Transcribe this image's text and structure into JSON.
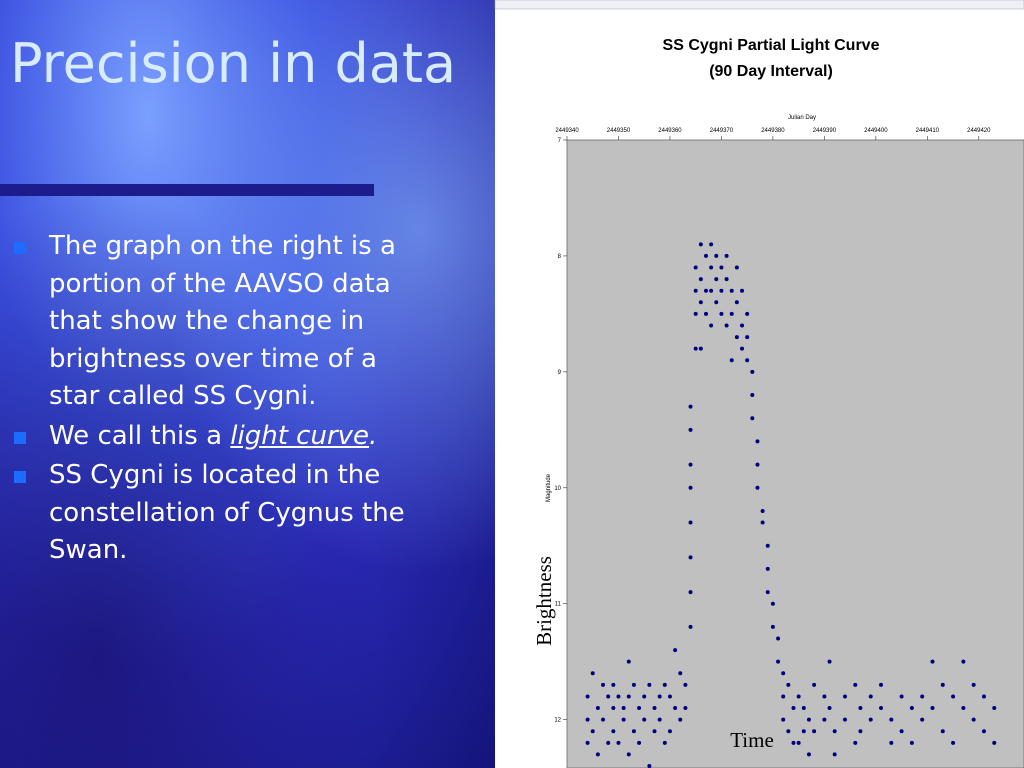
{
  "slide": {
    "title": "Precision in data",
    "bullets": [
      [
        "The graph on the right is a portion of the AAVSO data that show the change in brightness over time of a star called SS Cygni."
      ],
      [
        "We call this a ",
        "light curve",
        "."
      ],
      [
        "SS Cygni is located in the constellation of Cygnus the Swan."
      ]
    ]
  },
  "chart_data": {
    "type": "scatter",
    "title": "SS Cygni  Partial Light Curve",
    "subtitle": "(90 Day Interval)",
    "x_label": "Julian Day",
    "y_label": "Magnitude",
    "annotations": [
      "Brightness",
      "Time"
    ],
    "color": "#000080",
    "invert_y": true,
    "xlim": [
      2449340,
      2449428
    ],
    "xticks": [
      2449340,
      2449350,
      2449360,
      2449370,
      2449380,
      2449390,
      2449400,
      2449410,
      2449420
    ],
    "ylim": [
      7,
      12.4
    ],
    "yticks": [
      7,
      8,
      9,
      10,
      11,
      12
    ],
    "x": [
      2449344,
      2449344,
      2449344,
      2449345,
      2449345,
      2449346,
      2449346,
      2449347,
      2449347,
      2449348,
      2449348,
      2449349,
      2449349,
      2449349,
      2449350,
      2449350,
      2449351,
      2449351,
      2449352,
      2449352,
      2449352,
      2449353,
      2449353,
      2449354,
      2449354,
      2449355,
      2449355,
      2449356,
      2449356,
      2449357,
      2449357,
      2449358,
      2449358,
      2449359,
      2449359,
      2449360,
      2449360,
      2449361,
      2449361,
      2449362,
      2449362,
      2449363,
      2449363,
      2449364,
      2449364,
      2449364,
      2449364,
      2449364,
      2449364,
      2449364,
      2449364,
      2449365,
      2449365,
      2449365,
      2449365,
      2449366,
      2449366,
      2449366,
      2449366,
      2449367,
      2449367,
      2449367,
      2449368,
      2449368,
      2449368,
      2449368,
      2449369,
      2449369,
      2449369,
      2449370,
      2449370,
      2449370,
      2449371,
      2449371,
      2449371,
      2449372,
      2449372,
      2449372,
      2449373,
      2449373,
      2449373,
      2449374,
      2449374,
      2449374,
      2449375,
      2449375,
      2449375,
      2449376,
      2449376,
      2449376,
      2449377,
      2449377,
      2449377,
      2449378,
      2449378,
      2449379,
      2449379,
      2449379,
      2449380,
      2449380,
      2449381,
      2449381,
      2449382,
      2449382,
      2449382,
      2449383,
      2449383,
      2449384,
      2449384,
      2449385,
      2449385,
      2449386,
      2449386,
      2449387,
      2449387,
      2449388,
      2449388,
      2449390,
      2449390,
      2449391,
      2449391,
      2449392,
      2449392,
      2449394,
      2449394,
      2449396,
      2449396,
      2449397,
      2449397,
      2449399,
      2449399,
      2449401,
      2449401,
      2449403,
      2449403,
      2449405,
      2449405,
      2449407,
      2449407,
      2449409,
      2449409,
      2449411,
      2449411,
      2449413,
      2449413,
      2449415,
      2449415,
      2449417,
      2449417,
      2449419,
      2449419,
      2449421,
      2449421,
      2449423,
      2449423
    ],
    "values": [
      11.8,
      12.0,
      12.2,
      11.6,
      12.1,
      11.9,
      12.3,
      11.7,
      12.0,
      11.8,
      12.2,
      11.7,
      11.9,
      12.1,
      11.8,
      12.2,
      11.9,
      12.0,
      11.5,
      11.8,
      12.3,
      11.7,
      12.1,
      11.9,
      12.2,
      11.8,
      12.0,
      11.7,
      12.4,
      11.9,
      12.1,
      11.8,
      12.0,
      11.7,
      12.2,
      11.8,
      12.1,
      11.4,
      11.9,
      11.6,
      12.0,
      11.7,
      11.9,
      11.2,
      10.9,
      10.6,
      10.3,
      10.0,
      9.8,
      9.5,
      9.3,
      8.8,
      8.5,
      8.3,
      8.1,
      7.9,
      8.2,
      8.4,
      8.8,
      8.0,
      8.3,
      8.5,
      7.9,
      8.1,
      8.3,
      8.6,
      8.0,
      8.2,
      8.4,
      8.1,
      8.3,
      8.5,
      8.0,
      8.2,
      8.6,
      8.3,
      8.5,
      8.9,
      8.1,
      8.4,
      8.7,
      8.3,
      8.6,
      8.8,
      8.5,
      8.7,
      8.9,
      9.0,
      9.2,
      9.4,
      9.6,
      9.8,
      10.0,
      10.2,
      10.3,
      10.5,
      10.7,
      10.9,
      11.0,
      11.2,
      11.3,
      11.5,
      11.6,
      11.8,
      12.0,
      11.7,
      12.1,
      11.9,
      12.2,
      11.8,
      12.2,
      11.9,
      12.1,
      12.0,
      12.3,
      11.7,
      12.1,
      11.8,
      12.0,
      11.5,
      11.9,
      12.1,
      12.3,
      11.8,
      12.0,
      11.7,
      12.2,
      11.9,
      12.1,
      11.8,
      12.0,
      11.7,
      11.9,
      12.0,
      12.2,
      11.8,
      12.1,
      11.9,
      12.2,
      11.8,
      12.0,
      11.5,
      11.9,
      11.7,
      12.1,
      11.8,
      12.2,
      11.5,
      11.9,
      11.7,
      12.0,
      11.8,
      12.1,
      11.9,
      12.2
    ]
  }
}
